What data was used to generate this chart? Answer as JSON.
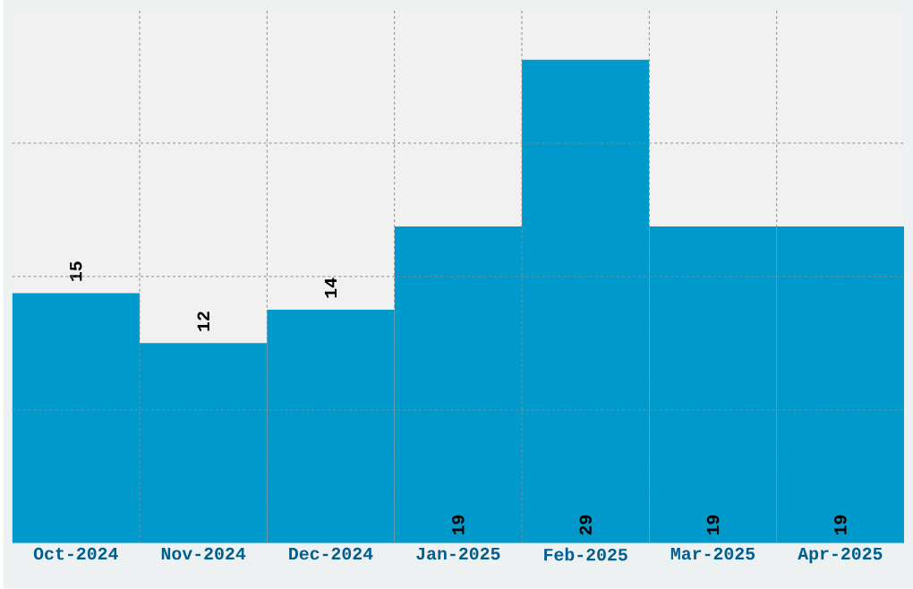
{
  "chart_data": {
    "type": "bar",
    "categories": [
      "Oct-2024",
      "Nov-2024",
      "Dec-2024",
      "Jan-2025",
      "Feb-2025",
      "Mar-2025",
      "Apr-2025"
    ],
    "values": [
      15,
      12,
      14,
      19,
      29,
      19,
      19
    ],
    "color": "#0099cc",
    "ylim": [
      0,
      32
    ],
    "yticks": [
      {
        "value": 8,
        "label": null
      },
      {
        "value": 16,
        "label": null
      },
      {
        "value": 24,
        "label": null
      }
    ],
    "grid": true,
    "tick_labels": "x",
    "data_labels": true
  }
}
